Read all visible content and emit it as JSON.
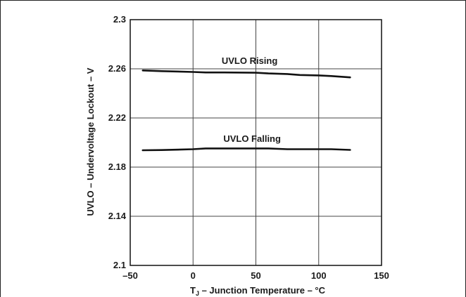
{
  "chart_data": {
    "type": "line",
    "title": "",
    "xlabel": "T",
    "xlabel_sub": "J",
    "xlabel_rest": " – Junction Temperature – °C",
    "ylabel": "UVLO – Undervoltage Lockout – V",
    "xlim": [
      -50,
      150
    ],
    "ylim": [
      2.1,
      2.3
    ],
    "xticks": [
      "–50",
      "0",
      "50",
      "100",
      "150"
    ],
    "yticks": [
      "2.1",
      "2.14",
      "2.18",
      "2.22",
      "2.26",
      "2.3"
    ],
    "grid": true,
    "series": [
      {
        "name": "UVLO Rising",
        "x": [
          -40,
          -25,
          0,
          10,
          25,
          50,
          60,
          75,
          85,
          100,
          110,
          125
        ],
        "y": [
          2.2587,
          2.2581,
          2.2574,
          2.257,
          2.257,
          2.2568,
          2.2562,
          2.2558,
          2.255,
          2.2546,
          2.2541,
          2.253
        ]
      },
      {
        "name": "UVLO Falling",
        "x": [
          -40,
          -25,
          0,
          10,
          25,
          50,
          60,
          75,
          85,
          100,
          110,
          125
        ],
        "y": [
          2.1937,
          2.1939,
          2.1946,
          2.1952,
          2.1952,
          2.1952,
          2.1952,
          2.1946,
          2.1946,
          2.1946,
          2.1946,
          2.194
        ]
      }
    ],
    "annotations": [
      {
        "text": "UVLO Rising",
        "x": 45,
        "y": 2.264
      },
      {
        "text": "UVLO Falling",
        "x": 47,
        "y": 2.2005
      }
    ]
  }
}
